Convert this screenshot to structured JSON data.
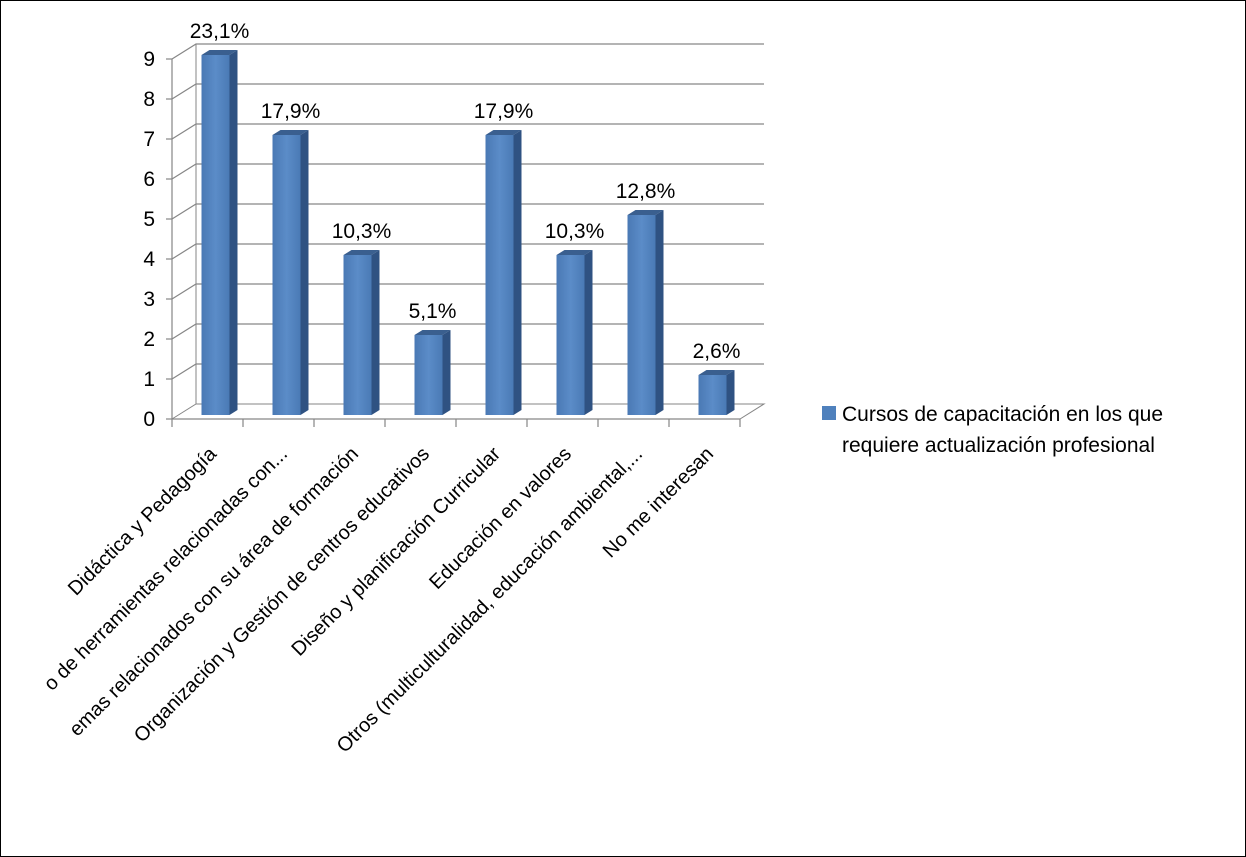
{
  "chart_data": {
    "type": "bar",
    "title": "",
    "xlabel": "",
    "ylabel": "",
    "ylim": [
      0,
      9
    ],
    "yticks": [
      "0",
      "1",
      "2",
      "3",
      "4",
      "5",
      "6",
      "7",
      "8",
      "9"
    ],
    "grid": true,
    "legend_position": "right",
    "bar_style": "3d",
    "categories": [
      "Didáctica y Pedagogía",
      "o de herramientas relacionadas con...",
      "emas relacionados con su área de formación",
      "Organización y Gestión de centros educativos",
      "Diseño y planificación Curricular",
      "Educación en valores",
      "Otros (multiculturalidad, educación ambiental,...",
      "No me interesan"
    ],
    "series": [
      {
        "name": "Cursos de capacitación en los que requiere actualización profesional",
        "values": [
          9,
          7,
          4,
          2,
          7,
          4,
          5,
          1
        ],
        "data_labels": [
          "23,1%",
          "17,9%",
          "10,3%",
          "5,1%",
          "17,9%",
          "10,3%",
          "12,8%",
          "2,6%"
        ],
        "color": "#4F81BD"
      }
    ],
    "legend_lines": [
      "Cursos de capacitación en los que",
      "requiere actualización profesional"
    ]
  }
}
